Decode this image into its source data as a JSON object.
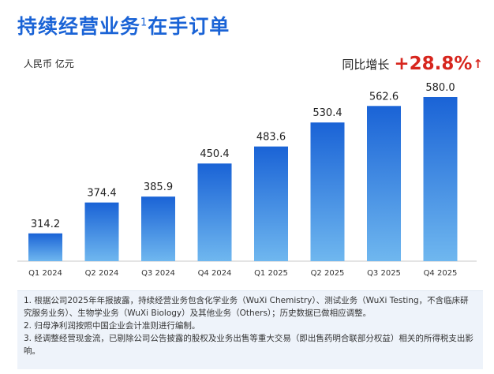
{
  "title": "持续经营业务",
  "title_sup": "1",
  "title_suffix": "在手订单",
  "unit_label": "人民币 亿元",
  "growth": {
    "label": "同比增长",
    "value": "+28.8%",
    "arrow": "↑",
    "color": "#d7261e"
  },
  "colors": {
    "bar_top": "#1a63d6",
    "bar_bottom": "#6fb7ef",
    "title": "#1a63d6"
  },
  "chart_data": {
    "type": "bar",
    "title": "持续经营业务1在手订单",
    "ylabel": "人民币 亿元",
    "categories": [
      "Q1 2024",
      "Q2 2024",
      "Q3 2024",
      "Q4 2024",
      "Q1 2025",
      "Q2 2025",
      "Q3 2025",
      "Q4 2025"
    ],
    "values": [
      314.2,
      374.4,
      385.9,
      450.4,
      483.6,
      530.4,
      562.6,
      580.0
    ],
    "labels": [
      "314.2",
      "374.4",
      "385.9",
      "450.4",
      "483.6",
      "530.4",
      "562.6",
      "580.0"
    ],
    "ylim": [
      260,
      600
    ],
    "grid": false,
    "legend": "none"
  },
  "footnotes": [
    "1. 根据公司2025年年报披露，持续经营业务包含化学业务（WuXi Chemistry）、测试业务（WuXi Testing，不含临床研究服务业务）、生物学业务（WuXi Biology）及其他业务（Others）；历史数据已做相应调整。",
    "2. 归母净利润按照中国企业会计准则进行编制。",
    "3. 经调整经营现金流，已剔除公司公告披露的股权及业务出售等重大交易（即出售药明合联部分权益）相关的所得税支出影响。"
  ]
}
